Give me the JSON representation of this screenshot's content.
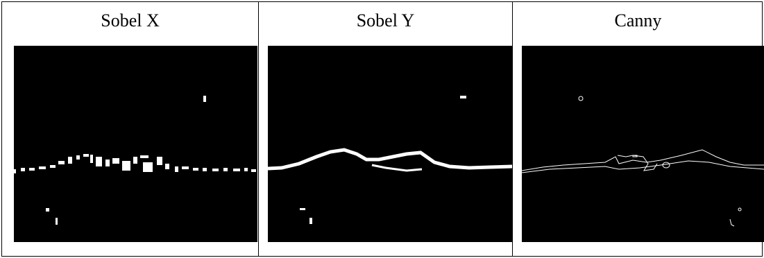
{
  "table": {
    "headers": [
      "Sobel X",
      "Sobel Y",
      "Canny"
    ]
  }
}
